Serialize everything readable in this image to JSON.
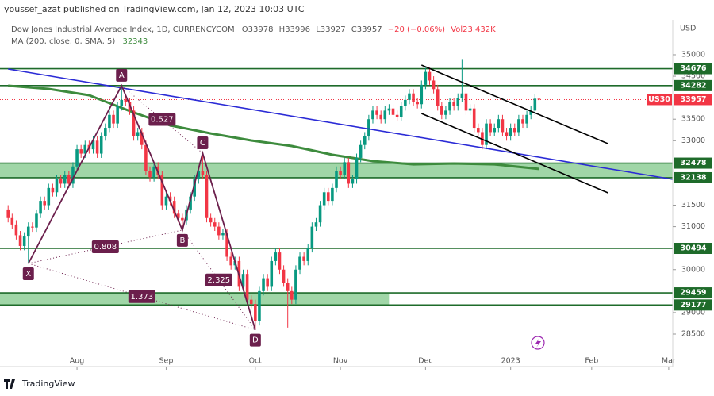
{
  "header": {
    "publisher": "youssef_azat published on TradingView.com, Jan 12, 2023 10:03 UTC"
  },
  "footer": "TradingView",
  "chart_data": {
    "type": "candlestick",
    "title": "Dow Jones Industrial Average Index, 1D, CURRENCYCOM",
    "ohlc_labels": [
      "O33978",
      "H33996",
      "L33927",
      "C33957",
      "−20 (−0.06%)",
      "Vol23.432K"
    ],
    "currency": "USD",
    "xlim": [
      -2,
      164
    ],
    "ylim": [
      27872,
      35812
    ],
    "xticks": [
      {
        "value": 17,
        "label": "Aug"
      },
      {
        "value": 39,
        "label": "Sep"
      },
      {
        "value": 61,
        "label": "Oct"
      },
      {
        "value": 82,
        "label": "Nov"
      },
      {
        "value": 103,
        "label": "Dec"
      },
      {
        "value": 124,
        "label": "2023"
      },
      {
        "value": 144,
        "label": "Feb"
      },
      {
        "value": 163,
        "label": "Mar"
      }
    ],
    "yticks": [
      28500,
      29000,
      30000,
      31000,
      31500,
      33000,
      33500,
      34500,
      35000
    ],
    "up_color": "#089981",
    "down_color": "#f23645",
    "candles": {
      "open": [
        31400,
        31200,
        31050,
        30800,
        30550,
        30770,
        31000,
        30980,
        31300,
        31600,
        31500,
        31900,
        31800,
        32100,
        32000,
        32200,
        32000,
        32400,
        32800,
        32700,
        32900,
        32800,
        33000,
        32700,
        33100,
        33300,
        33600,
        33400,
        33800,
        33950,
        33900,
        33700,
        33100,
        33200,
        32900,
        32300,
        32150,
        32400,
        32200,
        31500,
        31700,
        31600,
        31300,
        31200,
        31150,
        31400,
        31700,
        32100,
        32300,
        32200,
        31200,
        31100,
        31000,
        30800,
        30850,
        30300,
        30100,
        30200,
        29600,
        29900,
        29300,
        29200,
        28800,
        29500,
        29800,
        29600,
        30200,
        30400,
        30000,
        29700,
        29500,
        29300,
        30000,
        30300,
        30200,
        30500,
        31000,
        31100,
        31500,
        31800,
        31600,
        31900,
        32300,
        32200,
        32500,
        32000,
        32100,
        32600,
        32900,
        33100,
        33500,
        33700,
        33600,
        33500,
        33700,
        33750,
        33600,
        33550,
        33800,
        33950,
        34100,
        33900,
        33850,
        34300,
        34600,
        34400,
        34200,
        33800,
        33600,
        33700,
        33900,
        33800,
        34000,
        34100,
        33700,
        33750,
        33300,
        33200,
        32900,
        33400,
        33200,
        33300,
        33500,
        33200,
        33100,
        33300,
        33200,
        33500,
        33400,
        33600,
        33700,
        33978
      ],
      "high": [
        31500,
        31300,
        31150,
        30900,
        30870,
        31100,
        31100,
        31400,
        31700,
        31700,
        32000,
        32000,
        32200,
        32200,
        32300,
        32300,
        32500,
        32900,
        32900,
        33000,
        33000,
        33100,
        33100,
        33200,
        33400,
        33700,
        33700,
        33900,
        34281,
        34050,
        34000,
        33800,
        33300,
        33300,
        33000,
        32400,
        32500,
        32500,
        32300,
        31800,
        31800,
        31700,
        31400,
        31300,
        31500,
        31800,
        32200,
        32400,
        32710,
        32300,
        31300,
        31200,
        31100,
        30950,
        30950,
        30400,
        30300,
        30300,
        30000,
        30000,
        29400,
        29300,
        29600,
        29900,
        29900,
        30300,
        30500,
        30500,
        30100,
        29800,
        29600,
        30100,
        30400,
        30400,
        30600,
        31100,
        31200,
        31600,
        31900,
        31900,
        32000,
        32400,
        32400,
        32600,
        32600,
        32200,
        32700,
        33000,
        33200,
        33600,
        33800,
        33800,
        33700,
        33800,
        33850,
        33850,
        33700,
        33900,
        34050,
        34200,
        34200,
        34000,
        34400,
        34700,
        34700,
        34500,
        34300,
        33900,
        33800,
        34000,
        34000,
        34100,
        34900,
        34200,
        33850,
        33850,
        33400,
        33300,
        33500,
        33500,
        33400,
        33600,
        33600,
        33300,
        33400,
        33400,
        33600,
        33600,
        33700,
        33800,
        34078,
        33996
      ],
      "low": [
        31100,
        30950,
        30700,
        30450,
        30450,
        30143,
        30880,
        30880,
        31200,
        31400,
        31400,
        31700,
        31700,
        31900,
        31900,
        31900,
        31900,
        32300,
        32600,
        32600,
        32700,
        32700,
        32600,
        32600,
        33000,
        33200,
        33300,
        33300,
        33700,
        33800,
        33600,
        33000,
        33000,
        32800,
        32200,
        32050,
        32050,
        32100,
        31400,
        31400,
        31500,
        31200,
        31100,
        30920,
        31050,
        31300,
        31600,
        32000,
        32100,
        31100,
        31000,
        30900,
        30700,
        30700,
        30200,
        30000,
        30000,
        29500,
        29500,
        29200,
        29100,
        28600,
        28700,
        29400,
        29500,
        29500,
        30100,
        29900,
        29600,
        28650,
        29200,
        29200,
        29900,
        30100,
        30100,
        30400,
        30900,
        31000,
        31400,
        31500,
        31500,
        31800,
        32100,
        32100,
        31900,
        31900,
        32000,
        32500,
        32800,
        33000,
        33400,
        33500,
        33400,
        33400,
        33600,
        33500,
        33450,
        33450,
        33700,
        33850,
        33800,
        33750,
        33750,
        34200,
        34300,
        34100,
        33700,
        33500,
        33500,
        33600,
        33700,
        33700,
        33900,
        33600,
        33600,
        33200,
        33100,
        32800,
        32800,
        33100,
        33100,
        33200,
        33100,
        33000,
        33000,
        33100,
        33100,
        33300,
        33300,
        33500,
        33600,
        33927
      ],
      "close": [
        31200,
        31050,
        30800,
        30550,
        30770,
        31000,
        30980,
        31300,
        31600,
        31500,
        31900,
        31800,
        32100,
        32000,
        32200,
        32000,
        32400,
        32800,
        32700,
        32900,
        32800,
        33000,
        32700,
        33100,
        33300,
        33600,
        33400,
        33800,
        33950,
        33900,
        33700,
        33100,
        33200,
        32900,
        32300,
        32150,
        32400,
        32200,
        31500,
        31700,
        31600,
        31300,
        31200,
        31150,
        31400,
        31700,
        32100,
        32300,
        32200,
        31200,
        31100,
        31000,
        30800,
        30850,
        30300,
        30100,
        30200,
        29600,
        29900,
        29300,
        29200,
        28800,
        29500,
        29800,
        29600,
        30200,
        30400,
        30000,
        29700,
        29500,
        29300,
        30000,
        30300,
        30200,
        30500,
        31000,
        31100,
        31500,
        31800,
        31600,
        31900,
        32300,
        32200,
        32500,
        32000,
        32100,
        32600,
        32900,
        33100,
        33500,
        33700,
        33600,
        33500,
        33700,
        33750,
        33600,
        33550,
        33800,
        33950,
        34100,
        33900,
        33850,
        34300,
        34600,
        34400,
        34200,
        33800,
        33600,
        33700,
        33900,
        33800,
        34000,
        34100,
        33700,
        33750,
        33300,
        33200,
        32900,
        33400,
        33200,
        33300,
        33500,
        33200,
        33100,
        33300,
        33200,
        33500,
        33400,
        33600,
        33700,
        33978,
        33957
      ]
    },
    "ma": {
      "name": "MA (200, close, 0, SMA, 5)",
      "value": 32343,
      "color": "#3d8b3d",
      "x": [
        0,
        10,
        20,
        30,
        40,
        50,
        60,
        70,
        80,
        90,
        100,
        110,
        120,
        131
      ],
      "values": [
        34280,
        34206,
        34058,
        33690,
        33356,
        33170,
        33005,
        32876,
        32673,
        32525,
        32450,
        32470,
        32450,
        32343
      ]
    },
    "levels": [
      34676,
      34282,
      32478,
      32138,
      30494,
      29459,
      29177
    ],
    "level_color": "#1e6b2a",
    "zones": [
      {
        "from": 32138,
        "to": 32478
      },
      {
        "from": 29177,
        "to": 29459,
        "end": 94
      }
    ],
    "zone_color": "#8fcf98",
    "trendline": {
      "color": "#2b2bd6",
      "x": [
        0,
        164
      ],
      "values": [
        34668,
        32101
      ]
    },
    "channel": {
      "color": "#000000",
      "lines": [
        {
          "x": [
            102,
            148
          ],
          "values": [
            34760,
            32932
          ]
        },
        {
          "x": [
            102,
            148
          ],
          "values": [
            33633,
            31787
          ]
        }
      ]
    },
    "pattern": {
      "color": "#6b1f4c",
      "points": [
        {
          "label": "X",
          "x": 5,
          "value": 30143
        },
        {
          "label": "A",
          "x": 28,
          "value": 34281
        },
        {
          "label": "B",
          "x": 43,
          "value": 30920
        },
        {
          "label": "C",
          "x": 48,
          "value": 32710
        },
        {
          "label": "D",
          "x": 61,
          "value": 28600
        }
      ],
      "ratios": [
        {
          "value": 0.527,
          "between": [
            1,
            3
          ]
        },
        {
          "value": 0.808,
          "between": [
            0,
            2
          ]
        },
        {
          "value": 2.325,
          "between": [
            2,
            4
          ]
        },
        {
          "value": 1.373,
          "between": [
            0,
            4
          ]
        }
      ]
    },
    "last_price": {
      "label": "US30",
      "value": 33957,
      "color": "#f23645"
    }
  }
}
